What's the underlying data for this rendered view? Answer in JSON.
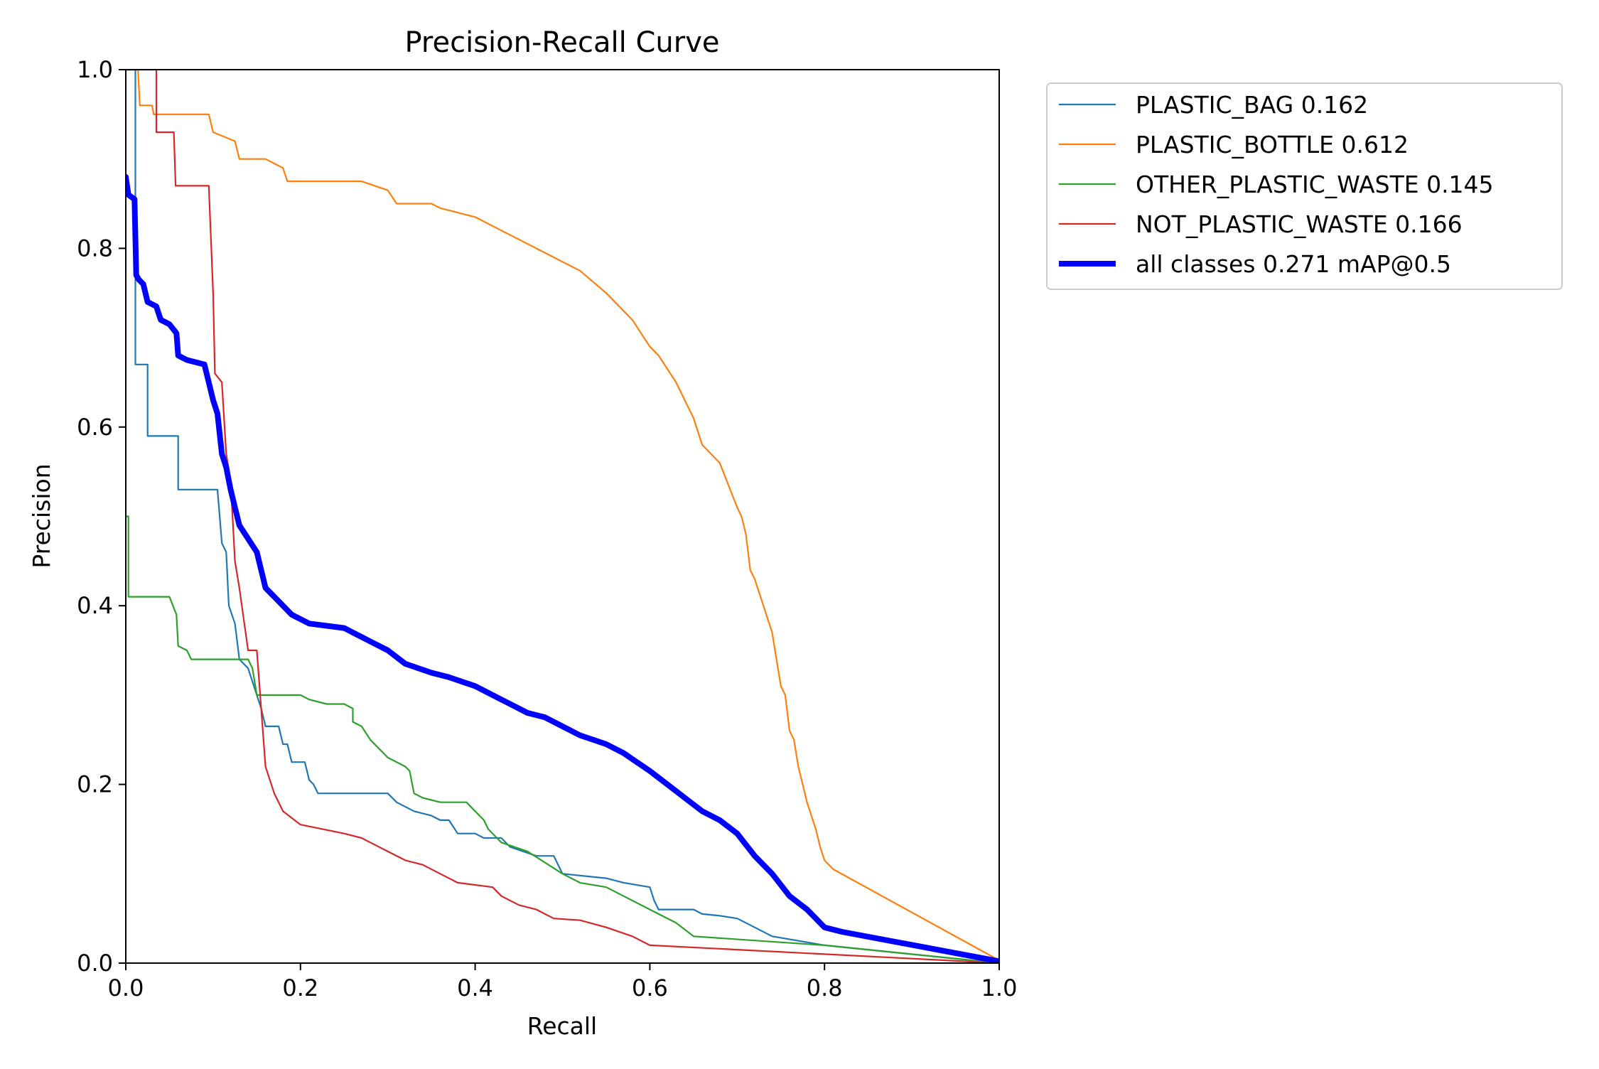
{
  "chart_data": {
    "type": "line",
    "title": "Precision-Recall Curve",
    "xlabel": "Recall",
    "ylabel": "Precision",
    "xlim": [
      0,
      1
    ],
    "ylim": [
      0,
      1
    ],
    "xticks": [
      "0.0",
      "0.2",
      "0.4",
      "0.6",
      "0.8",
      "1.0"
    ],
    "yticks": [
      "0.0",
      "0.2",
      "0.4",
      "0.6",
      "0.8",
      "1.0"
    ],
    "grid": false,
    "legend_position": "outside upper right",
    "series": [
      {
        "name": "PLASTIC_BAG 0.162",
        "color": "#1f77b4",
        "points": [
          [
            0,
            1.0
          ],
          [
            0.011,
            1.0
          ],
          [
            0.011,
            0.67
          ],
          [
            0.025,
            0.67
          ],
          [
            0.025,
            0.59
          ],
          [
            0.06,
            0.59
          ],
          [
            0.06,
            0.53
          ],
          [
            0.105,
            0.53
          ],
          [
            0.11,
            0.47
          ],
          [
            0.115,
            0.46
          ],
          [
            0.118,
            0.4
          ],
          [
            0.125,
            0.38
          ],
          [
            0.13,
            0.34
          ],
          [
            0.14,
            0.33
          ],
          [
            0.15,
            0.3
          ],
          [
            0.155,
            0.285
          ],
          [
            0.16,
            0.265
          ],
          [
            0.175,
            0.265
          ],
          [
            0.18,
            0.245
          ],
          [
            0.185,
            0.245
          ],
          [
            0.19,
            0.225
          ],
          [
            0.205,
            0.225
          ],
          [
            0.21,
            0.205
          ],
          [
            0.215,
            0.2
          ],
          [
            0.22,
            0.19
          ],
          [
            0.3,
            0.19
          ],
          [
            0.31,
            0.18
          ],
          [
            0.33,
            0.17
          ],
          [
            0.35,
            0.165
          ],
          [
            0.36,
            0.16
          ],
          [
            0.37,
            0.16
          ],
          [
            0.38,
            0.145
          ],
          [
            0.4,
            0.145
          ],
          [
            0.41,
            0.14
          ],
          [
            0.43,
            0.14
          ],
          [
            0.44,
            0.13
          ],
          [
            0.47,
            0.12
          ],
          [
            0.49,
            0.12
          ],
          [
            0.5,
            0.1
          ],
          [
            0.55,
            0.095
          ],
          [
            0.57,
            0.09
          ],
          [
            0.6,
            0.085
          ],
          [
            0.605,
            0.07
          ],
          [
            0.61,
            0.06
          ],
          [
            0.65,
            0.06
          ],
          [
            0.66,
            0.055
          ],
          [
            0.68,
            0.053
          ],
          [
            0.7,
            0.05
          ],
          [
            0.72,
            0.04
          ],
          [
            0.74,
            0.03
          ],
          [
            0.8,
            0.02
          ],
          [
            1.0,
            0.0
          ]
        ]
      },
      {
        "name": "PLASTIC_BOTTLE 0.612",
        "color": "#ff7f0e",
        "points": [
          [
            0,
            1.0
          ],
          [
            0.014,
            1.0
          ],
          [
            0.016,
            0.96
          ],
          [
            0.03,
            0.96
          ],
          [
            0.032,
            0.95
          ],
          [
            0.095,
            0.95
          ],
          [
            0.1,
            0.93
          ],
          [
            0.125,
            0.92
          ],
          [
            0.13,
            0.9
          ],
          [
            0.16,
            0.9
          ],
          [
            0.18,
            0.89
          ],
          [
            0.185,
            0.875
          ],
          [
            0.27,
            0.875
          ],
          [
            0.3,
            0.865
          ],
          [
            0.31,
            0.85
          ],
          [
            0.35,
            0.85
          ],
          [
            0.36,
            0.845
          ],
          [
            0.4,
            0.835
          ],
          [
            0.43,
            0.82
          ],
          [
            0.45,
            0.81
          ],
          [
            0.47,
            0.8
          ],
          [
            0.49,
            0.79
          ],
          [
            0.5,
            0.785
          ],
          [
            0.52,
            0.775
          ],
          [
            0.55,
            0.75
          ],
          [
            0.56,
            0.74
          ],
          [
            0.58,
            0.72
          ],
          [
            0.6,
            0.69
          ],
          [
            0.61,
            0.68
          ],
          [
            0.63,
            0.65
          ],
          [
            0.64,
            0.63
          ],
          [
            0.65,
            0.61
          ],
          [
            0.66,
            0.58
          ],
          [
            0.68,
            0.56
          ],
          [
            0.69,
            0.535
          ],
          [
            0.7,
            0.51
          ],
          [
            0.705,
            0.5
          ],
          [
            0.71,
            0.48
          ],
          [
            0.715,
            0.44
          ],
          [
            0.72,
            0.43
          ],
          [
            0.73,
            0.4
          ],
          [
            0.74,
            0.37
          ],
          [
            0.745,
            0.34
          ],
          [
            0.75,
            0.31
          ],
          [
            0.755,
            0.3
          ],
          [
            0.76,
            0.26
          ],
          [
            0.765,
            0.25
          ],
          [
            0.77,
            0.22
          ],
          [
            0.775,
            0.2
          ],
          [
            0.78,
            0.18
          ],
          [
            0.79,
            0.15
          ],
          [
            0.795,
            0.13
          ],
          [
            0.8,
            0.115
          ],
          [
            0.81,
            0.105
          ],
          [
            1.0,
            0.003
          ]
        ]
      },
      {
        "name": "OTHER_PLASTIC_WASTE 0.145",
        "color": "#2ca02c",
        "points": [
          [
            0,
            0.5
          ],
          [
            0.003,
            0.5
          ],
          [
            0.003,
            0.41
          ],
          [
            0.05,
            0.41
          ],
          [
            0.058,
            0.39
          ],
          [
            0.06,
            0.355
          ],
          [
            0.07,
            0.35
          ],
          [
            0.075,
            0.34
          ],
          [
            0.14,
            0.34
          ],
          [
            0.145,
            0.33
          ],
          [
            0.15,
            0.3
          ],
          [
            0.2,
            0.3
          ],
          [
            0.21,
            0.295
          ],
          [
            0.23,
            0.29
          ],
          [
            0.25,
            0.29
          ],
          [
            0.26,
            0.285
          ],
          [
            0.26,
            0.27
          ],
          [
            0.27,
            0.265
          ],
          [
            0.28,
            0.25
          ],
          [
            0.29,
            0.24
          ],
          [
            0.3,
            0.23
          ],
          [
            0.32,
            0.22
          ],
          [
            0.325,
            0.215
          ],
          [
            0.33,
            0.19
          ],
          [
            0.34,
            0.185
          ],
          [
            0.36,
            0.18
          ],
          [
            0.39,
            0.18
          ],
          [
            0.4,
            0.17
          ],
          [
            0.41,
            0.16
          ],
          [
            0.415,
            0.15
          ],
          [
            0.43,
            0.135
          ],
          [
            0.46,
            0.125
          ],
          [
            0.5,
            0.1
          ],
          [
            0.52,
            0.09
          ],
          [
            0.55,
            0.085
          ],
          [
            0.57,
            0.075
          ],
          [
            0.6,
            0.06
          ],
          [
            0.63,
            0.045
          ],
          [
            0.65,
            0.03
          ],
          [
            0.8,
            0.02
          ],
          [
            1.0,
            0.0
          ]
        ]
      },
      {
        "name": "NOT_PLASTIC_WASTE 0.166",
        "color": "#d62728",
        "points": [
          [
            0,
            1.0
          ],
          [
            0.035,
            1.0
          ],
          [
            0.035,
            0.93
          ],
          [
            0.055,
            0.93
          ],
          [
            0.057,
            0.87
          ],
          [
            0.095,
            0.87
          ],
          [
            0.1,
            0.75
          ],
          [
            0.102,
            0.66
          ],
          [
            0.11,
            0.65
          ],
          [
            0.115,
            0.57
          ],
          [
            0.12,
            0.54
          ],
          [
            0.125,
            0.45
          ],
          [
            0.13,
            0.42
          ],
          [
            0.14,
            0.35
          ],
          [
            0.15,
            0.35
          ],
          [
            0.16,
            0.22
          ],
          [
            0.17,
            0.19
          ],
          [
            0.175,
            0.18
          ],
          [
            0.18,
            0.17
          ],
          [
            0.2,
            0.155
          ],
          [
            0.25,
            0.145
          ],
          [
            0.27,
            0.14
          ],
          [
            0.28,
            0.135
          ],
          [
            0.3,
            0.125
          ],
          [
            0.32,
            0.115
          ],
          [
            0.34,
            0.11
          ],
          [
            0.36,
            0.1
          ],
          [
            0.38,
            0.09
          ],
          [
            0.42,
            0.085
          ],
          [
            0.43,
            0.075
          ],
          [
            0.45,
            0.065
          ],
          [
            0.47,
            0.06
          ],
          [
            0.49,
            0.05
          ],
          [
            0.52,
            0.048
          ],
          [
            0.55,
            0.04
          ],
          [
            0.58,
            0.03
          ],
          [
            0.6,
            0.02
          ],
          [
            0.7,
            0.015
          ],
          [
            1.0,
            0.0
          ]
        ]
      },
      {
        "name": "all classes 0.271 mAP@0.5",
        "color": "#0000ff",
        "bold": true,
        "points": [
          [
            0,
            0.88
          ],
          [
            0.003,
            0.86
          ],
          [
            0.01,
            0.855
          ],
          [
            0.012,
            0.77
          ],
          [
            0.015,
            0.765
          ],
          [
            0.02,
            0.76
          ],
          [
            0.025,
            0.74
          ],
          [
            0.035,
            0.735
          ],
          [
            0.04,
            0.72
          ],
          [
            0.05,
            0.715
          ],
          [
            0.058,
            0.705
          ],
          [
            0.06,
            0.68
          ],
          [
            0.07,
            0.675
          ],
          [
            0.09,
            0.67
          ],
          [
            0.095,
            0.65
          ],
          [
            0.1,
            0.63
          ],
          [
            0.105,
            0.615
          ],
          [
            0.11,
            0.57
          ],
          [
            0.115,
            0.555
          ],
          [
            0.12,
            0.53
          ],
          [
            0.125,
            0.51
          ],
          [
            0.13,
            0.49
          ],
          [
            0.14,
            0.475
          ],
          [
            0.15,
            0.46
          ],
          [
            0.155,
            0.44
          ],
          [
            0.16,
            0.42
          ],
          [
            0.17,
            0.41
          ],
          [
            0.18,
            0.4
          ],
          [
            0.19,
            0.39
          ],
          [
            0.21,
            0.38
          ],
          [
            0.25,
            0.375
          ],
          [
            0.26,
            0.37
          ],
          [
            0.28,
            0.36
          ],
          [
            0.3,
            0.35
          ],
          [
            0.32,
            0.335
          ],
          [
            0.35,
            0.325
          ],
          [
            0.37,
            0.32
          ],
          [
            0.4,
            0.31
          ],
          [
            0.42,
            0.3
          ],
          [
            0.44,
            0.29
          ],
          [
            0.46,
            0.28
          ],
          [
            0.48,
            0.275
          ],
          [
            0.5,
            0.265
          ],
          [
            0.52,
            0.255
          ],
          [
            0.55,
            0.245
          ],
          [
            0.57,
            0.235
          ],
          [
            0.6,
            0.215
          ],
          [
            0.62,
            0.2
          ],
          [
            0.64,
            0.185
          ],
          [
            0.66,
            0.17
          ],
          [
            0.68,
            0.16
          ],
          [
            0.7,
            0.145
          ],
          [
            0.72,
            0.12
          ],
          [
            0.74,
            0.1
          ],
          [
            0.76,
            0.075
          ],
          [
            0.78,
            0.06
          ],
          [
            0.8,
            0.04
          ],
          [
            0.82,
            0.035
          ],
          [
            1.0,
            0.002
          ]
        ]
      }
    ]
  }
}
